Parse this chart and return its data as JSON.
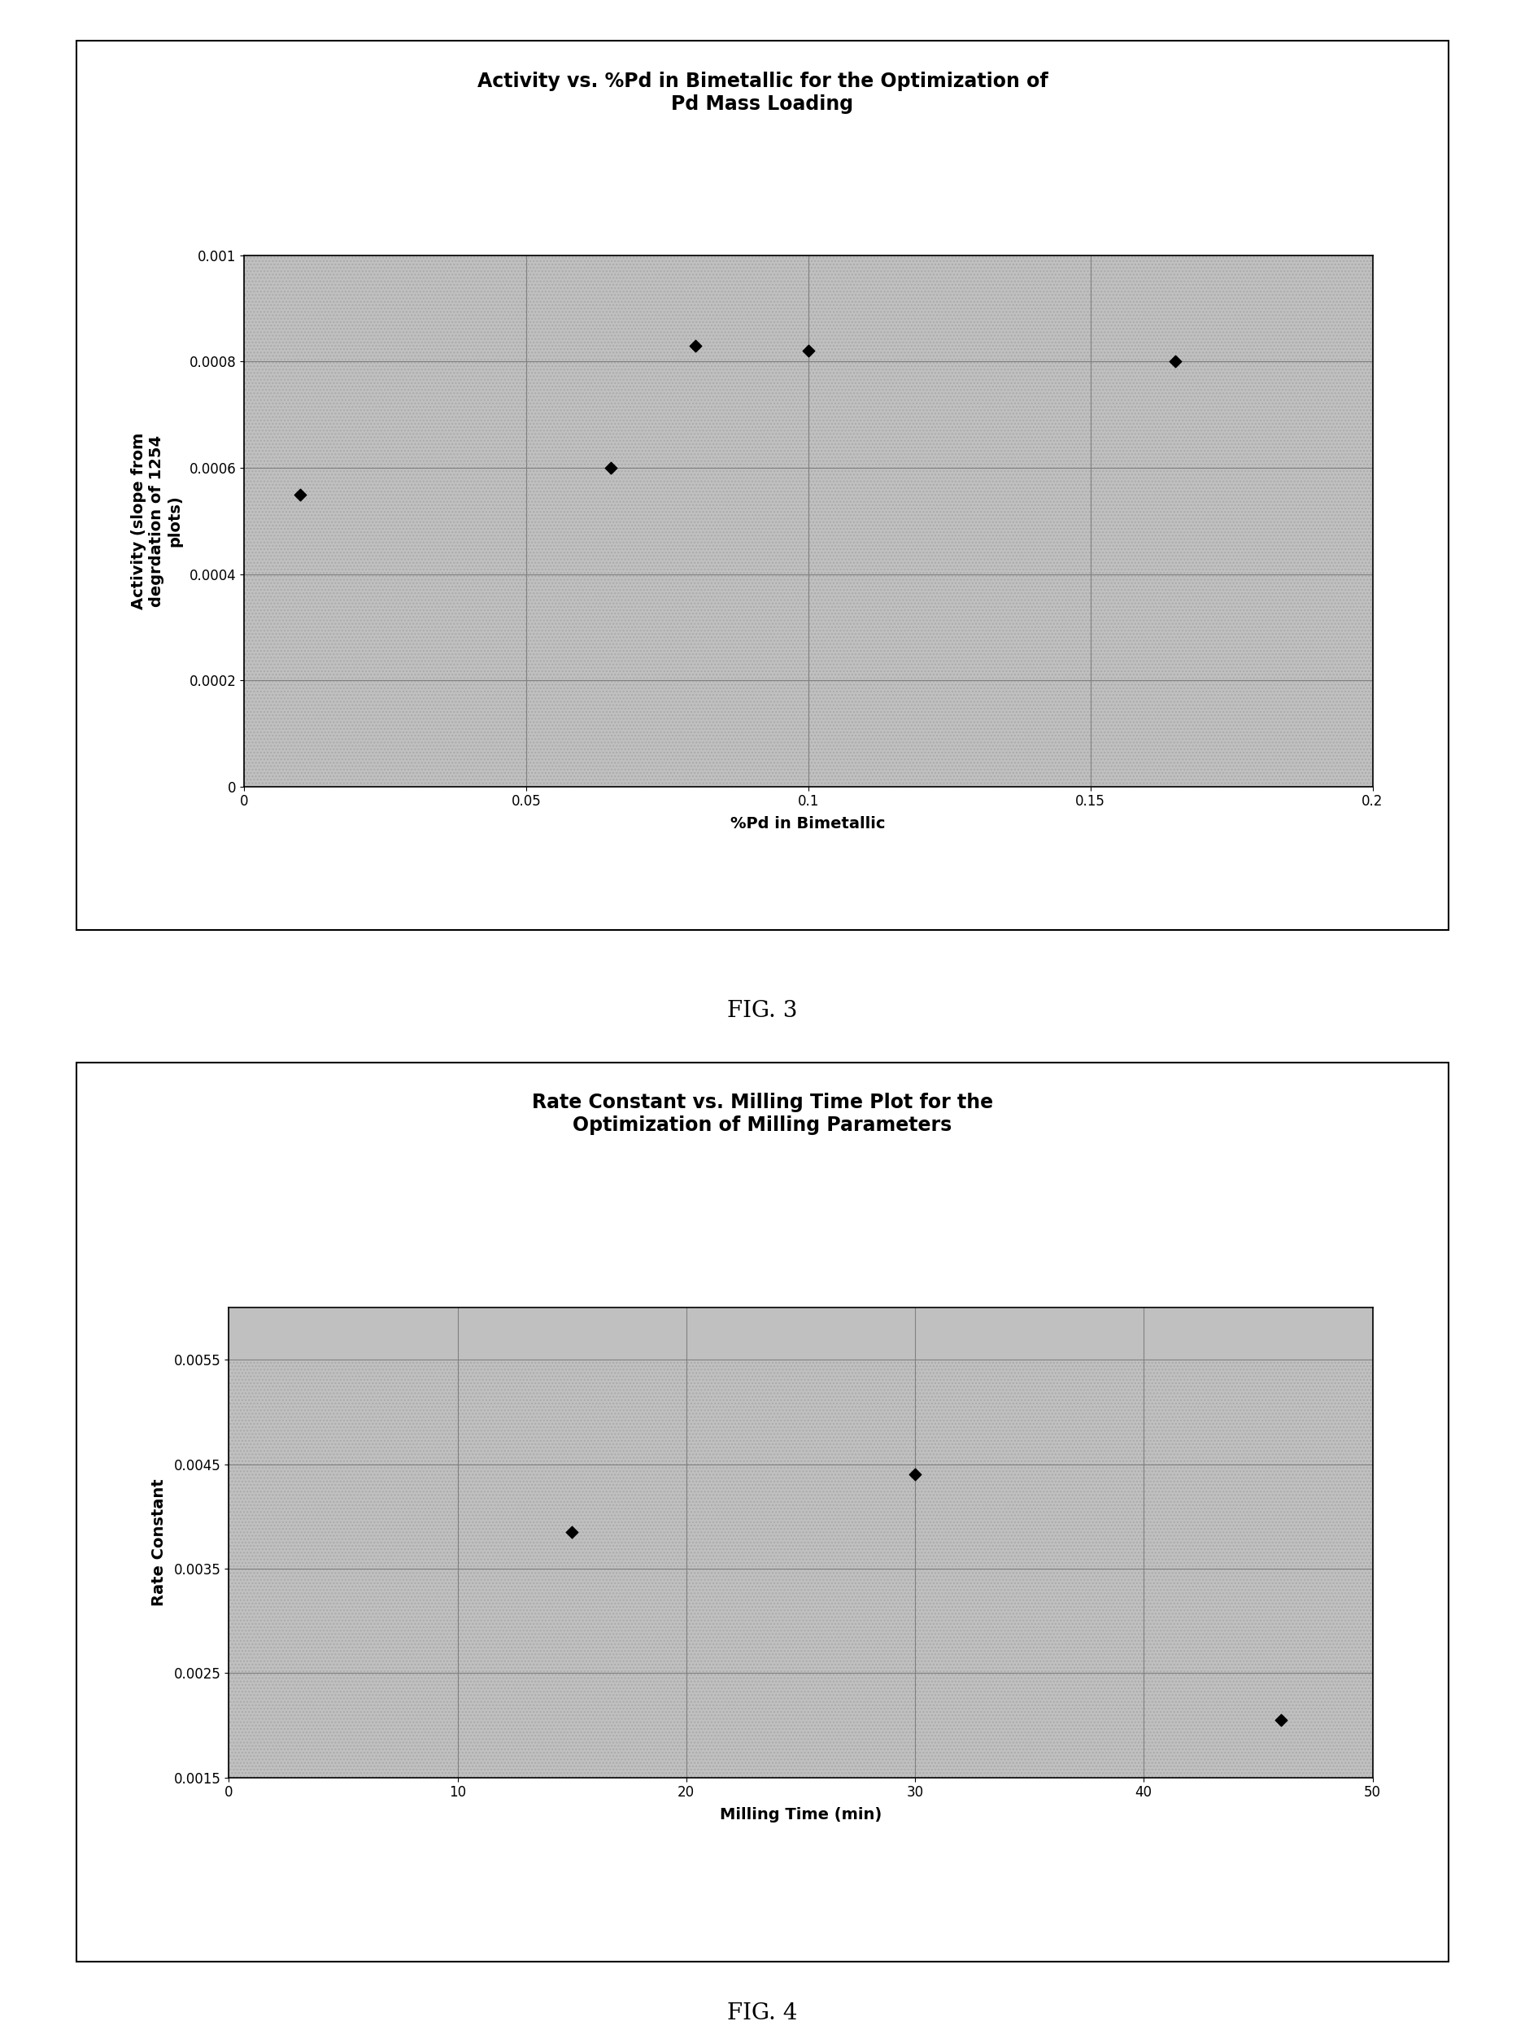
{
  "fig1": {
    "title": "Activity vs. %Pd in Bimetallic for the Optimization of\nPd Mass Loading",
    "xlabel": "%Pd in Bimetallic",
    "ylabel": "Activity (slope from\ndegrdation of 1254\nplots)",
    "x_data": [
      0.01,
      0.065,
      0.08,
      0.1,
      0.165
    ],
    "y_data": [
      0.00055,
      0.0006,
      0.00083,
      0.00082,
      0.0008
    ],
    "xlim": [
      0,
      0.2
    ],
    "ylim": [
      0,
      0.001
    ],
    "xticks": [
      0,
      0.05,
      0.1,
      0.15,
      0.2
    ],
    "yticks": [
      0,
      0.0002,
      0.0004,
      0.0006,
      0.0008,
      0.001
    ],
    "ytick_labels": [
      "0",
      "0.0002",
      "0.0004",
      "0.0006",
      "0.0008",
      "0.001"
    ],
    "xtick_labels": [
      "0",
      "0.05",
      "0.1",
      "0.15",
      "0.2"
    ],
    "bg_color": "#c0c0c0",
    "grid_color": "#808080",
    "fig_label": "FIG. 3"
  },
  "fig2": {
    "title": "Rate Constant vs. Milling Time Plot for the\nOptimization of Milling Parameters",
    "xlabel": "Milling Time (min)",
    "ylabel": "Rate Constant",
    "x_data": [
      15,
      30,
      46
    ],
    "y_data": [
      0.00385,
      0.0044,
      0.00205
    ],
    "xlim": [
      0,
      50
    ],
    "ylim": [
      0.0015,
      0.006
    ],
    "xticks": [
      0,
      10,
      20,
      30,
      40,
      50
    ],
    "yticks": [
      0.0015,
      0.0025,
      0.0035,
      0.0045,
      0.0055
    ],
    "ytick_labels": [
      "0.0015",
      "0.0025",
      "0.0035",
      "0.0045",
      "0.0055"
    ],
    "xtick_labels": [
      "0",
      "10",
      "20",
      "30",
      "40",
      "50"
    ],
    "bg_color": "#c0c0c0",
    "grid_color": "#808080",
    "fig_label": "FIG. 4"
  },
  "outer_bg": "#ffffff",
  "marker_color": "#000000",
  "title_fontsize": 17,
  "label_fontsize": 14,
  "tick_fontsize": 12,
  "fig_label_fontsize": 20
}
